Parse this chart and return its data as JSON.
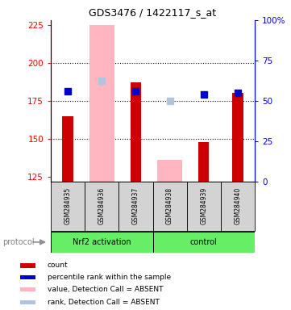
{
  "title": "GDS3476 / 1422117_s_at",
  "samples": [
    "GSM284935",
    "GSM284936",
    "GSM284937",
    "GSM284938",
    "GSM284939",
    "GSM284940"
  ],
  "ylim_left": [
    122,
    228
  ],
  "ylim_right": [
    0,
    100
  ],
  "yticks_left": [
    125,
    150,
    175,
    200,
    225
  ],
  "yticks_right": [
    0,
    25,
    50,
    75,
    100
  ],
  "count_values": [
    165,
    null,
    187,
    null,
    148,
    180
  ],
  "rank_values": [
    181,
    null,
    181,
    null,
    179,
    180
  ],
  "absent_value_bars": [
    null,
    225,
    null,
    136,
    null,
    null
  ],
  "absent_rank_bars": [
    null,
    188,
    null,
    175,
    null,
    null
  ],
  "count_color": "#CC0000",
  "rank_color": "#0000CC",
  "absent_value_color": "#FFB6C1",
  "absent_rank_color": "#B0C4DE",
  "baseline": 122,
  "dotted_lines": [
    150,
    175,
    200
  ],
  "protocol_label": "protocol",
  "group1_label": "Nrf2 activation",
  "group2_label": "control",
  "group_color": "#66EE66",
  "legend_items": [
    {
      "color": "#CC0000",
      "label": "count"
    },
    {
      "color": "#0000CC",
      "label": "percentile rank within the sample"
    },
    {
      "color": "#FFB6C1",
      "label": "value, Detection Call = ABSENT"
    },
    {
      "color": "#B0C4DE",
      "label": "rank, Detection Call = ABSENT"
    }
  ]
}
